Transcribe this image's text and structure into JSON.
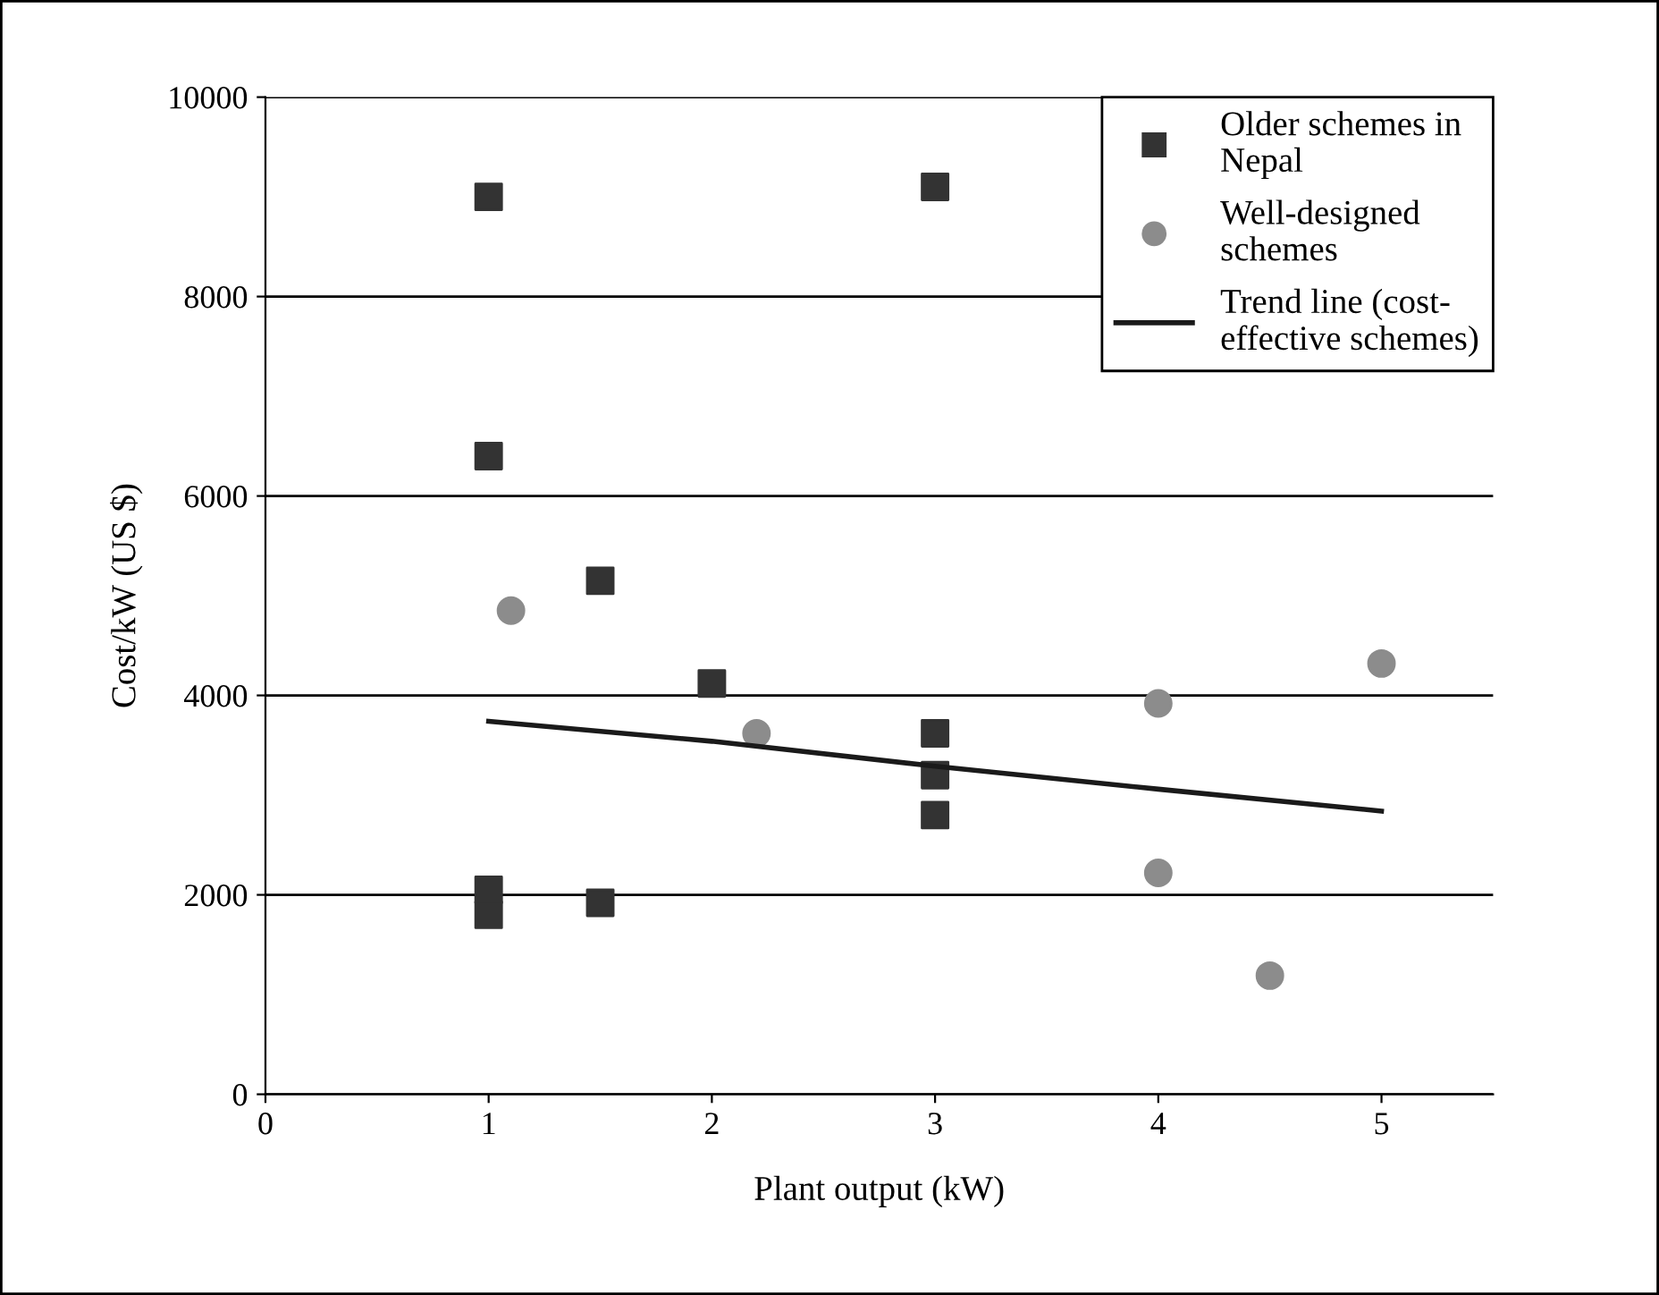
{
  "chart_data": {
    "type": "scatter",
    "xlabel": "Plant output (kW)",
    "ylabel": "Cost/kW (US $)",
    "xlim": [
      0,
      5.5
    ],
    "xticks": [
      0,
      1,
      2,
      3,
      4,
      5
    ],
    "ylim": [
      0,
      10000
    ],
    "yticks": [
      0,
      2000,
      4000,
      6000,
      8000,
      10000
    ],
    "grid": "y",
    "legend": "top right",
    "series": [
      {
        "name": "Older schemes in\nNepal",
        "marker": "square",
        "color": "#333333",
        "x": [
          1,
          1,
          1.5,
          2,
          3,
          3,
          3,
          3,
          1,
          1,
          1.5
        ],
        "values": [
          9000,
          6400,
          5150,
          4120,
          9100,
          3620,
          3200,
          2800,
          2050,
          1800,
          1920
        ]
      },
      {
        "name": "Well-designed\nschemes",
        "marker": "circle",
        "color": "#8c8c8c",
        "x": [
          1.1,
          2.2,
          4,
          4,
          4.5,
          5
        ],
        "values": [
          4850,
          3620,
          3920,
          2220,
          1190,
          4320
        ]
      },
      {
        "name": "Trend line (cost-\neffective schemes)",
        "type": "line",
        "marker": "none",
        "line_style": "solid",
        "color": "#1a1a1a",
        "x": [
          1,
          2,
          3,
          4,
          5
        ],
        "values": [
          3740,
          3540,
          3290,
          3060,
          2840
        ]
      }
    ]
  }
}
